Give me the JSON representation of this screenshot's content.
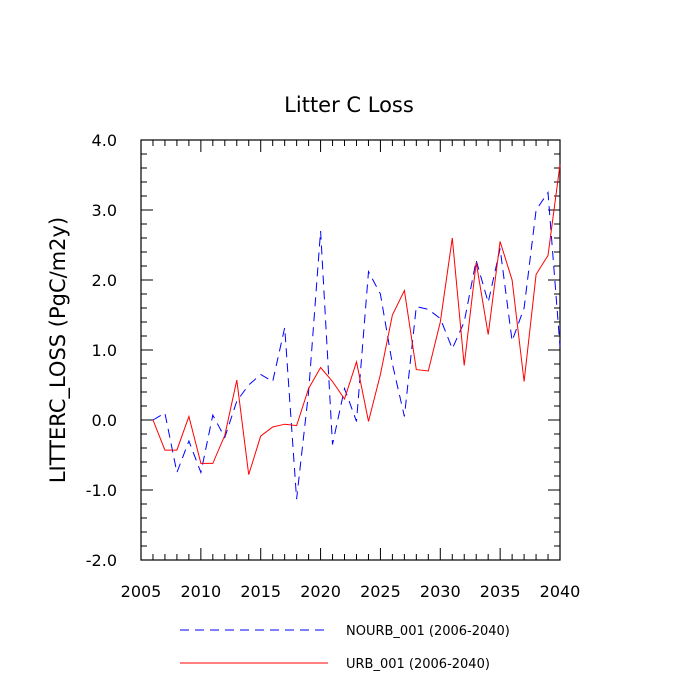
{
  "chart_data": {
    "type": "line",
    "title": "Litter C Loss",
    "xlabel": "",
    "ylabel": "LITTERC_LOSS  (PgC/m2y)",
    "xlim": [
      2005,
      2040
    ],
    "ylim": [
      -2.0,
      4.0
    ],
    "x_ticks": [
      2005,
      2010,
      2015,
      2020,
      2025,
      2030,
      2035,
      2040
    ],
    "x_tick_labels": [
      "2005",
      "2010",
      "2015",
      "2020",
      "2025",
      "2030",
      "2035",
      "2040"
    ],
    "y_ticks": [
      -2.0,
      -1.0,
      0.0,
      1.0,
      2.0,
      3.0,
      4.0
    ],
    "y_tick_labels": [
      "-2.0",
      "-1.0",
      "0.0",
      "1.0",
      "2.0",
      "3.0",
      "4.0"
    ],
    "grid": false,
    "legend_position": "bottom",
    "x": [
      2006,
      2007,
      2008,
      2009,
      2010,
      2011,
      2012,
      2013,
      2014,
      2015,
      2016,
      2017,
      2018,
      2019,
      2020,
      2021,
      2022,
      2023,
      2024,
      2025,
      2026,
      2027,
      2028,
      2029,
      2030,
      2031,
      2032,
      2033,
      2034,
      2035,
      2036,
      2037,
      2038,
      2039,
      2040
    ],
    "series": [
      {
        "name": "NOURB_001 (2006-2040)",
        "color": "#0000ff",
        "dash": "dashed",
        "values": [
          0.0,
          0.1,
          -0.75,
          -0.3,
          -0.75,
          0.07,
          -0.25,
          0.27,
          0.5,
          0.65,
          0.55,
          1.32,
          -1.13,
          0.4,
          2.7,
          -0.35,
          0.45,
          -0.02,
          2.12,
          1.8,
          0.8,
          0.05,
          1.62,
          1.58,
          1.45,
          1.02,
          1.4,
          2.28,
          1.68,
          2.45,
          1.13,
          1.6,
          3.0,
          3.25,
          1.05
        ]
      },
      {
        "name": "URB_001 (2006-2040)",
        "color": "#ff0000",
        "dash": "solid",
        "values": [
          0.0,
          -0.43,
          -0.43,
          0.05,
          -0.62,
          -0.62,
          -0.22,
          0.57,
          -0.78,
          -0.23,
          -0.1,
          -0.06,
          -0.08,
          0.45,
          0.75,
          0.55,
          0.3,
          0.83,
          -0.02,
          0.65,
          1.5,
          1.85,
          0.72,
          0.7,
          1.4,
          2.6,
          0.78,
          2.25,
          1.22,
          2.55,
          2.0,
          0.55,
          2.08,
          2.35,
          3.65
        ]
      }
    ]
  }
}
